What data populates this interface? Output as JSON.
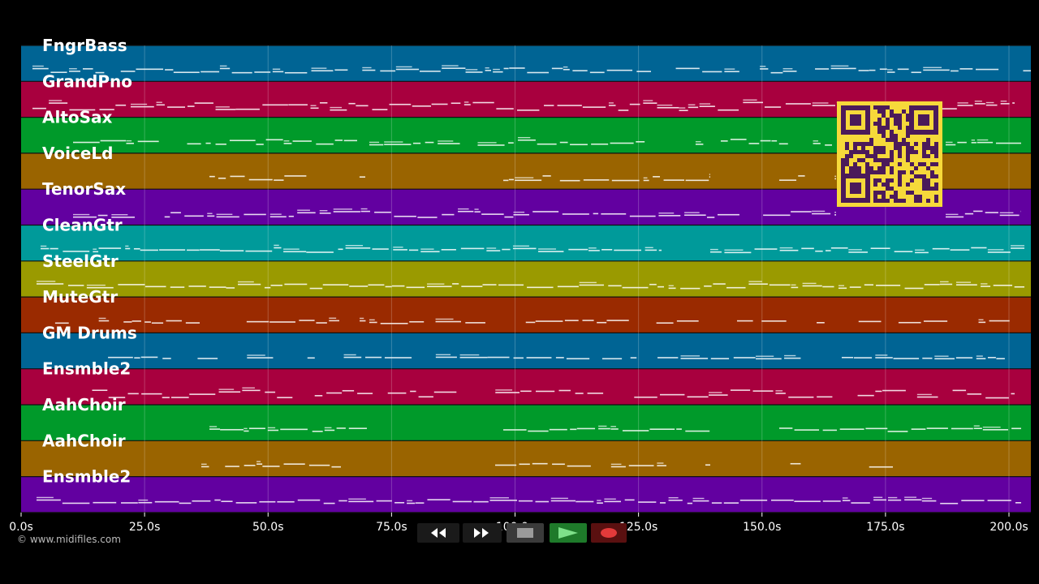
{
  "tracks": [
    {
      "name": "FngrBass",
      "color": "#006494"
    },
    {
      "name": "GrandPno",
      "color": "#a8003e"
    },
    {
      "name": "AltoSax",
      "color": "#009a2a"
    },
    {
      "name": "VoiceLd",
      "color": "#9a6400"
    },
    {
      "name": "TenorSax",
      "color": "#6200a0"
    },
    {
      "name": "CleanGtr",
      "color": "#009a9a"
    },
    {
      "name": "SteelGtr",
      "color": "#9a9a00"
    },
    {
      "name": "MuteGtr",
      "color": "#9a2a00"
    },
    {
      "name": "GM Drums",
      "color": "#006494"
    },
    {
      "name": "Ensmble2",
      "color": "#a8003e"
    },
    {
      "name": "AahChoir",
      "color": "#009a2a"
    },
    {
      "name": "AahChoir",
      "color": "#9a6400"
    },
    {
      "name": "Ensmble2",
      "color": "#6200a0"
    }
  ],
  "timeline": {
    "ticks": [
      "0.0s",
      "25.0s",
      "50.0s",
      "75.0s",
      "100.0s",
      "125.0s",
      "150.0s",
      "175.0s",
      "200.0s"
    ],
    "max_seconds": 200
  },
  "credit": "© www.midifiles.com",
  "transport": {
    "rewind_icon": "rewind-icon",
    "fast_forward_icon": "fast-forward-icon",
    "stop_icon": "stop-icon",
    "play_icon": "play-icon",
    "record_icon": "record-icon"
  },
  "qr_code": "qr-code-icon"
}
